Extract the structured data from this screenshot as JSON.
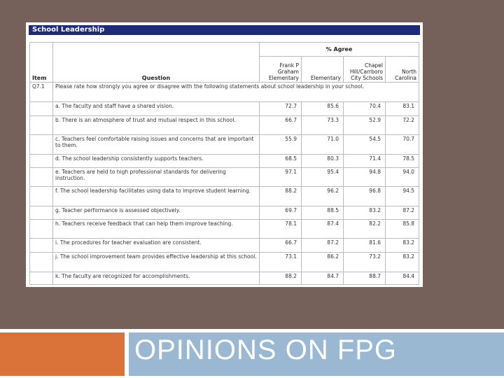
{
  "slide": {
    "title": "OPINIONS ON FPG"
  },
  "table": {
    "title": "School Leadership",
    "header": {
      "item": "Item",
      "question": "Question",
      "group": "% Agree",
      "columns": [
        "Frank P Graham Elementary",
        "Elementary",
        "Chapel Hill/Carrboro City Schools",
        "North Carolina"
      ]
    },
    "intro": {
      "item": "Q7.1",
      "text": "Please rate how strongly you agree or disagree with the following statements about school leadership in your school."
    },
    "rows": [
      {
        "question": "a. The faculty and staff have a shared vision.",
        "values": [
          "72.7",
          "85.6",
          "70.4",
          "83.1"
        ]
      },
      {
        "question": "b. There is an atmosphere of trust and mutual respect in this school.",
        "values": [
          "66.7",
          "73.3",
          "52.9",
          "72.2"
        ]
      },
      {
        "question": "c. Teachers feel comfortable raising issues and concerns that are important to them.",
        "values": [
          "55.9",
          "71.0",
          "54.5",
          "70.7"
        ]
      },
      {
        "question": "d. The school leadership consistently supports teachers.",
        "values": [
          "68.5",
          "80.3",
          "71.4",
          "78.5"
        ]
      },
      {
        "question": "e. Teachers are held to high professional standards for delivering instruction.",
        "values": [
          "97.1",
          "95.4",
          "94.8",
          "94.0"
        ]
      },
      {
        "question": "f. The school leadership facilitates using data to improve student learning.",
        "values": [
          "88.2",
          "96.2",
          "96.8",
          "94.5"
        ]
      },
      {
        "question": "g. Teacher performance is assessed objectively.",
        "values": [
          "69.7",
          "88.5",
          "83.2",
          "87.2"
        ]
      },
      {
        "question": "h. Teachers receive feedback that can help them improve teaching.",
        "values": [
          "78.1",
          "87.4",
          "82.2",
          "85.8"
        ]
      },
      {
        "question": "i. The procedures for teacher evaluation are consistent.",
        "values": [
          "66.7",
          "87.2",
          "81.6",
          "83.2"
        ]
      },
      {
        "question": "j. The school improvement team provides effective leadership at this school.",
        "values": [
          "73.1",
          "86.2",
          "73.2",
          "83.2"
        ]
      },
      {
        "question": "k. The faculty are recognized for accomplishments.",
        "values": [
          "88.2",
          "84.7",
          "88.7",
          "84.4"
        ]
      }
    ]
  }
}
